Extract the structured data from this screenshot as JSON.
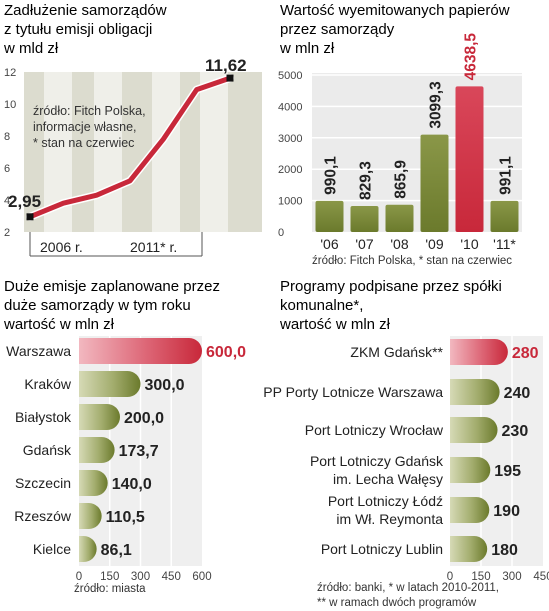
{
  "panels": {
    "debt": {
      "title_lines": [
        "Zadłużenie samorządów",
        "z tytułu emisji obligacji",
        "w mld zł"
      ],
      "note_lines": [
        "źródło: Fitch Polska,",
        "informacje własne,",
        "* stan na czerwiec"
      ]
    },
    "issued": {
      "title_lines": [
        "Wartość wyemitowanych papierów",
        "przez samorządy",
        "w mln zł"
      ],
      "source": "źródło: Fitch Polska, * stan na czerwiec"
    },
    "big_issues": {
      "title_lines": [
        "Duże emisje zaplanowane przez",
        "duże samorządy w tym roku",
        "wartość w mln zł"
      ],
      "source": "źródło: miasta"
    },
    "programs": {
      "title_lines": [
        "Programy podpisane przez spółki",
        "komunalne*,",
        "wartość w mln zł"
      ],
      "source_lines": [
        "źródło: banki, * w latach 2010-2011,",
        "** w ramach dwóch programów"
      ]
    }
  },
  "colors": {
    "accent": "#c8283a",
    "accent_light": "#e58a96",
    "olive": "#6b7a2c",
    "olive_light": "#d6dab6",
    "bar_bg": "#efefef",
    "area": "#dcdccf",
    "text": "#333333"
  },
  "chart_data": [
    {
      "id": "debt",
      "type": "line",
      "x_tick_labels": [
        "2006 r.",
        "2011* r."
      ],
      "yticks": [
        2,
        4,
        6,
        8,
        10,
        12
      ],
      "ylim": [
        2,
        12
      ],
      "start_label": "2,95",
      "end_label": "11,62",
      "series": [
        {
          "values": [
            2.95,
            3.8,
            4.3,
            5.2,
            7.8,
            10.9,
            11.62
          ]
        }
      ]
    },
    {
      "id": "issued",
      "type": "bar",
      "categories": [
        "'06",
        "'07",
        "'08",
        "'09",
        "'10",
        "'11*"
      ],
      "values": [
        990.1,
        829.3,
        865.9,
        3099.3,
        4638.5,
        991.1
      ],
      "labels": [
        "990,1",
        "829,3",
        "865,9",
        "3099,3",
        "4638,5",
        "991,1"
      ],
      "highlight_index": 4,
      "yticks": [
        0,
        1000,
        2000,
        3000,
        4000,
        5000
      ],
      "ylim": [
        0,
        5000
      ]
    },
    {
      "id": "big_issues",
      "type": "bar",
      "orientation": "horizontal",
      "categories": [
        "Warszawa",
        "Kraków",
        "Białystok",
        "Gdańsk",
        "Szczecin",
        "Rzeszów",
        "Kielce"
      ],
      "values": [
        600.0,
        300.0,
        200.0,
        173.7,
        140.0,
        110.5,
        86.1
      ],
      "labels": [
        "600,0",
        "300,0",
        "200,0",
        "173,7",
        "140,0",
        "110,5",
        "86,1"
      ],
      "highlight_index": 0,
      "xticks": [
        0,
        150,
        300,
        450,
        600
      ],
      "xlim": [
        0,
        600
      ]
    },
    {
      "id": "programs",
      "type": "bar",
      "orientation": "horizontal",
      "categories": [
        [
          "ZKM Gdańsk**"
        ],
        [
          "PP Porty Lotnicze Warszawa"
        ],
        [
          "Port Lotniczy Wrocław"
        ],
        [
          "Port Lotniczy Gdańsk",
          "im. Lecha Wałęsy"
        ],
        [
          "Port Lotniczy Łódź",
          "im Wł. Reymonta"
        ],
        [
          "Port Lotniczy Lublin"
        ]
      ],
      "values": [
        280,
        240,
        230,
        195,
        190,
        180
      ],
      "labels": [
        "280",
        "240",
        "230",
        "195",
        "190",
        "180"
      ],
      "highlight_index": 0,
      "xticks": [
        0,
        150,
        300,
        450
      ],
      "xlim": [
        0,
        450
      ]
    }
  ]
}
